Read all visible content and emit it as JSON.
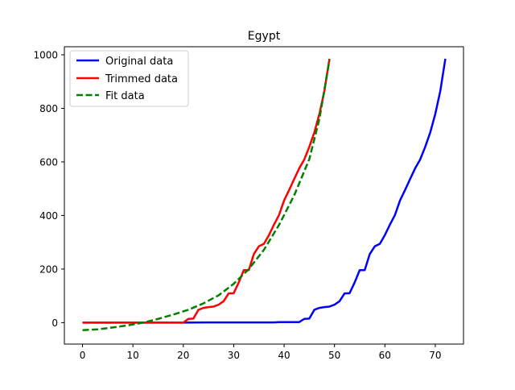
{
  "chart_data": {
    "type": "line",
    "title": "Egypt",
    "xlabel": "",
    "ylabel": "",
    "xlim": [
      -3.6,
      75.6
    ],
    "ylim": [
      -80,
      1030
    ],
    "x_ticks": [
      0,
      10,
      20,
      30,
      40,
      50,
      60,
      70
    ],
    "y_ticks": [
      0,
      200,
      400,
      600,
      800,
      1000
    ],
    "grid": false,
    "legend_position": "upper-left",
    "series": [
      {
        "name": "Original data",
        "color": "#0000ff",
        "style": "solid",
        "points": [
          [
            0,
            0
          ],
          [
            5,
            0
          ],
          [
            10,
            0
          ],
          [
            20,
            0
          ],
          [
            25,
            1
          ],
          [
            30,
            1
          ],
          [
            38,
            1
          ],
          [
            39,
            2
          ],
          [
            43,
            2
          ],
          [
            44,
            14
          ],
          [
            45,
            15
          ],
          [
            46,
            48
          ],
          [
            47,
            55
          ],
          [
            48,
            58
          ],
          [
            49,
            60
          ],
          [
            50,
            67
          ],
          [
            51,
            80
          ],
          [
            52,
            109
          ],
          [
            53,
            110
          ],
          [
            54,
            150
          ],
          [
            55,
            196
          ],
          [
            56,
            196
          ],
          [
            57,
            256
          ],
          [
            58,
            285
          ],
          [
            59,
            294
          ],
          [
            60,
            327
          ],
          [
            61,
            366
          ],
          [
            62,
            402
          ],
          [
            63,
            456
          ],
          [
            64,
            495
          ],
          [
            65,
            536
          ],
          [
            66,
            576
          ],
          [
            67,
            609
          ],
          [
            68,
            656
          ],
          [
            69,
            710
          ],
          [
            70,
            779
          ],
          [
            71,
            865
          ],
          [
            72,
            985
          ]
        ]
      },
      {
        "name": "Trimmed data",
        "color": "#ff0000",
        "style": "solid",
        "points": [
          [
            0,
            0
          ],
          [
            5,
            0
          ],
          [
            10,
            0
          ],
          [
            15,
            0
          ],
          [
            20,
            0
          ],
          [
            21,
            14
          ],
          [
            22,
            15
          ],
          [
            23,
            48
          ],
          [
            24,
            55
          ],
          [
            25,
            58
          ],
          [
            26,
            60
          ],
          [
            27,
            67
          ],
          [
            28,
            80
          ],
          [
            29,
            109
          ],
          [
            30,
            110
          ],
          [
            31,
            150
          ],
          [
            32,
            196
          ],
          [
            33,
            196
          ],
          [
            34,
            256
          ],
          [
            35,
            285
          ],
          [
            36,
            294
          ],
          [
            37,
            327
          ],
          [
            38,
            366
          ],
          [
            39,
            402
          ],
          [
            40,
            456
          ],
          [
            41,
            495
          ],
          [
            42,
            536
          ],
          [
            43,
            576
          ],
          [
            44,
            609
          ],
          [
            45,
            656
          ],
          [
            46,
            710
          ],
          [
            47,
            779
          ],
          [
            48,
            865
          ],
          [
            49,
            985
          ]
        ]
      },
      {
        "name": "Fit data",
        "color": "#008000",
        "style": "dashed",
        "points": [
          [
            0,
            -28
          ],
          [
            3,
            -25
          ],
          [
            6,
            -18
          ],
          [
            9,
            -10
          ],
          [
            12,
            0
          ],
          [
            15,
            14
          ],
          [
            18,
            30
          ],
          [
            21,
            48
          ],
          [
            24,
            72
          ],
          [
            27,
            102
          ],
          [
            30,
            145
          ],
          [
            33,
            200
          ],
          [
            36,
            272
          ],
          [
            39,
            365
          ],
          [
            42,
            475
          ],
          [
            45,
            610
          ],
          [
            47,
            760
          ],
          [
            49,
            980
          ]
        ]
      }
    ]
  }
}
